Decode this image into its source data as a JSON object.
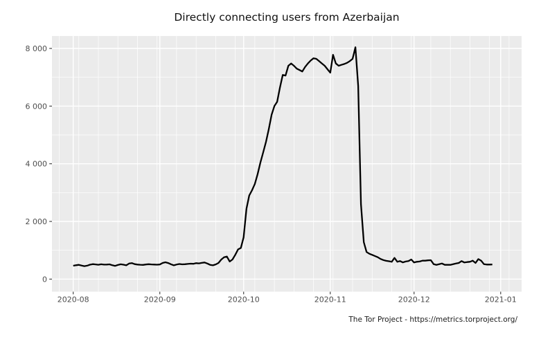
{
  "page": {
    "title": "Directly connecting users from Azerbaijan",
    "footer": "The Tor Project - https://metrics.torproject.org/"
  },
  "chart_data": {
    "type": "line",
    "title": "Directly connecting users from Azerbaijan",
    "xlabel": "",
    "ylabel": "",
    "source_note": "The Tor Project - https://metrics.torproject.org/",
    "legend": false,
    "grid": true,
    "x_start_date": "2020-08-01",
    "frequency": "daily",
    "series": [
      {
        "name": "directly-connecting-users",
        "color": "#000000",
        "values": [
          465,
          480,
          495,
          470,
          450,
          467,
          500,
          520,
          510,
          498,
          515,
          502,
          505,
          512,
          480,
          458,
          490,
          515,
          500,
          478,
          540,
          556,
          520,
          505,
          498,
          493,
          506,
          516,
          510,
          504,
          500,
          507,
          560,
          585,
          558,
          515,
          478,
          505,
          525,
          512,
          516,
          526,
          536,
          530,
          552,
          545,
          562,
          576,
          540,
          494,
          478,
          510,
          560,
          680,
          760,
          783,
          610,
          680,
          840,
          1030,
          1080,
          1450,
          2440,
          2900,
          3080,
          3300,
          3640,
          4040,
          4400,
          4760,
          5200,
          5700,
          6000,
          6150,
          6650,
          7080,
          7060,
          7400,
          7480,
          7400,
          7300,
          7250,
          7200,
          7360,
          7480,
          7580,
          7660,
          7640,
          7560,
          7480,
          7400,
          7280,
          7160,
          7780,
          7480,
          7400,
          7430,
          7460,
          7500,
          7560,
          7640,
          8040,
          6700,
          2600,
          1280,
          940,
          880,
          840,
          800,
          760,
          700,
          660,
          635,
          620,
          600,
          735,
          600,
          625,
          578,
          610,
          625,
          680,
          576,
          600,
          610,
          638,
          640,
          650,
          655,
          520,
          495,
          520,
          540,
          495,
          498,
          495,
          520,
          540,
          560,
          625,
          576,
          590,
          600,
          640,
          560,
          695,
          638,
          520,
          505,
          505,
          508
        ]
      }
    ],
    "x_ticks": [
      {
        "day": 0,
        "label": "2020-08"
      },
      {
        "day": 31,
        "label": "2020-09"
      },
      {
        "day": 61,
        "label": "2020-10"
      },
      {
        "day": 92,
        "label": "2020-11"
      },
      {
        "day": 122,
        "label": "2020-12"
      },
      {
        "day": 153,
        "label": "2021-01"
      }
    ],
    "y_ticks": [
      {
        "value": 0,
        "label": "0"
      },
      {
        "value": 2000,
        "label": "2 000"
      },
      {
        "value": 4000,
        "label": "4 000"
      },
      {
        "value": 6000,
        "label": "6 000"
      },
      {
        "value": 8000,
        "label": "8 000"
      }
    ],
    "x_minor_days": [
      -5,
      2,
      9,
      16,
      23,
      30,
      37,
      44,
      51,
      58,
      65,
      72,
      79,
      86,
      93,
      100,
      107,
      114,
      121,
      128,
      135,
      142,
      149,
      156
    ],
    "y_minor_values": [
      1000,
      3000,
      5000,
      7000
    ],
    "ylim": [
      0,
      8431
    ],
    "legend_position": "none",
    "colors": {
      "background": "#FFFFFF",
      "panel_bg": "#EBEBEB",
      "grid": "#FFFFFF",
      "axis_text": "#4D4D4D",
      "tick_mark": "#333333",
      "line": "#000000"
    }
  }
}
